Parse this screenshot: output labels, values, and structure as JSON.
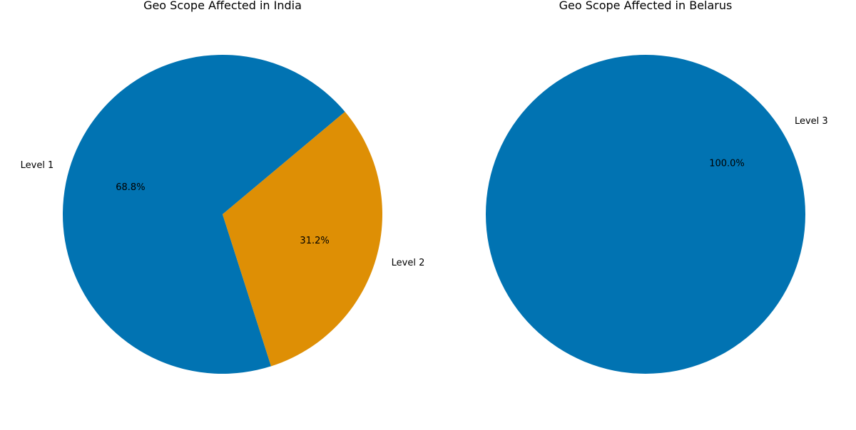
{
  "chart_data": [
    {
      "type": "pie",
      "title": "Geo Scope Affected in India",
      "categories": [
        "Level 1",
        "Level 2"
      ],
      "values": [
        68.8,
        31.2
      ],
      "percent_labels": [
        "68.8%",
        "31.2%"
      ],
      "colors": [
        "#0173b2",
        "#de8f05"
      ]
    },
    {
      "type": "pie",
      "title": "Geo Scope Affected in Belarus",
      "categories": [
        "Level 3"
      ],
      "values": [
        100.0
      ],
      "percent_labels": [
        "100.0%"
      ],
      "colors": [
        "#0173b2"
      ]
    }
  ]
}
